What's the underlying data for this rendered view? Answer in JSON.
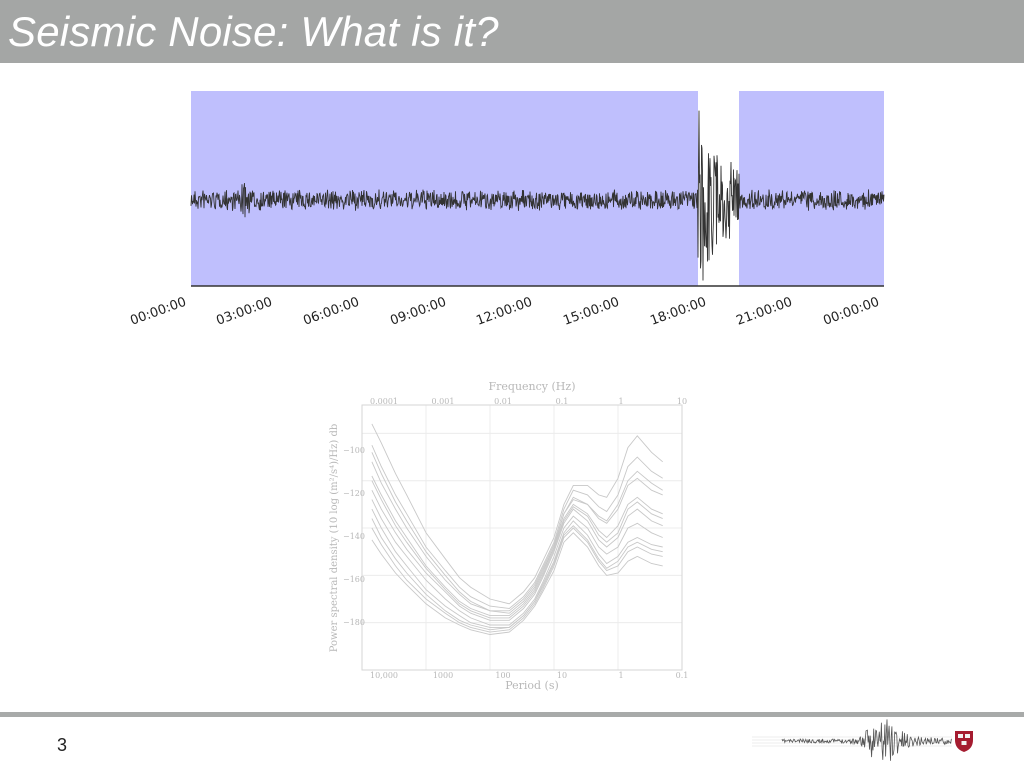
{
  "slide": {
    "title": "Seismic Noise: What is it?",
    "page_number": "3"
  },
  "seismogram": {
    "time_labels": [
      "00:00:00",
      "03:00:00",
      "06:00:00",
      "09:00:00",
      "12:00:00",
      "15:00:00",
      "18:00:00",
      "21:00:00",
      "00:00:00"
    ],
    "shade_color": "#bfbffd",
    "trace_color": "#333333"
  },
  "chart_data": {
    "type": "line",
    "top_axis_label": "Frequency (Hz)",
    "top_ticks": [
      "0.0001",
      "0.001",
      "0.01",
      "0.1",
      "1",
      "10"
    ],
    "xlabel": "Period (s)",
    "x_ticks": [
      "10,000",
      "1000",
      "100",
      "10",
      "1",
      "0.1"
    ],
    "x_scale": "log",
    "xlim": [
      10000,
      0.1
    ],
    "ylabel": "Power spectral density (10 log (m²/s⁴)/Hz) db",
    "y_ticks": [
      "−100",
      "−120",
      "−140",
      "−160",
      "−180"
    ],
    "ylim": [
      -200,
      -88
    ],
    "line_color": "#c8c8c8",
    "series": [
      {
        "x": [
          7000,
          5000,
          3000,
          2000,
          1000,
          500,
          300,
          200,
          100,
          50,
          30,
          20,
          15,
          10,
          7,
          5,
          3,
          2,
          1.5,
          1,
          0.7,
          0.5,
          0.3,
          0.2
        ],
        "values": [
          -128,
          -136,
          -146,
          -152,
          -162,
          -170,
          -175,
          -178,
          -181,
          -181,
          -176,
          -170,
          -163,
          -152,
          -140,
          -135,
          -140,
          -148,
          -151,
          -148,
          -140,
          -138,
          -142,
          -144
        ]
      },
      {
        "x": [
          7000,
          5000,
          3000,
          2000,
          1000,
          500,
          300,
          200,
          100,
          50,
          30,
          20,
          15,
          10,
          7,
          5,
          3,
          2,
          1.5,
          1,
          0.7,
          0.5,
          0.3,
          0.2
        ],
        "values": [
          -118,
          -126,
          -137,
          -144,
          -156,
          -165,
          -171,
          -174,
          -177,
          -177,
          -172,
          -166,
          -159,
          -148,
          -136,
          -130,
          -134,
          -141,
          -144,
          -139,
          -130,
          -127,
          -132,
          -134
        ]
      },
      {
        "x": [
          7000,
          5000,
          3000,
          2000,
          1000,
          500,
          300,
          200,
          100,
          50,
          30,
          20,
          15,
          10,
          7,
          5,
          3,
          2,
          1.5,
          1,
          0.7,
          0.5,
          0.3,
          0.2
        ],
        "values": [
          -140,
          -147,
          -156,
          -162,
          -170,
          -176,
          -180,
          -182,
          -184,
          -183,
          -178,
          -172,
          -166,
          -156,
          -144,
          -140,
          -146,
          -154,
          -158,
          -156,
          -150,
          -148,
          -151,
          -152
        ]
      },
      {
        "x": [
          7000,
          5000,
          3000,
          2000,
          1000,
          500,
          300,
          200,
          100,
          50,
          30,
          20,
          15,
          10,
          7,
          5,
          3,
          2,
          1.5,
          1,
          0.7,
          0.5,
          0.3,
          0.2
        ],
        "values": [
          -105,
          -114,
          -126,
          -134,
          -148,
          -158,
          -165,
          -169,
          -173,
          -174,
          -169,
          -163,
          -156,
          -146,
          -132,
          -124,
          -126,
          -131,
          -133,
          -126,
          -114,
          -110,
          -116,
          -119
        ]
      },
      {
        "x": [
          7000,
          5000,
          3000,
          2000,
          1000,
          500,
          300,
          200,
          100,
          50,
          30,
          20,
          15,
          10,
          7,
          5,
          3,
          2,
          1.5,
          1,
          0.7,
          0.5,
          0.3,
          0.2
        ],
        "values": [
          -132,
          -140,
          -150,
          -156,
          -166,
          -173,
          -177,
          -180,
          -182,
          -182,
          -177,
          -171,
          -164,
          -154,
          -142,
          -137,
          -143,
          -151,
          -155,
          -152,
          -146,
          -144,
          -147,
          -148
        ]
      },
      {
        "x": [
          7000,
          5000,
          3000,
          2000,
          1000,
          500,
          300,
          200,
          100,
          50,
          30,
          20,
          15,
          10,
          7,
          5,
          3,
          2,
          1.5,
          1,
          0.7,
          0.5,
          0.3,
          0.2
        ],
        "values": [
          -112,
          -121,
          -132,
          -140,
          -152,
          -162,
          -168,
          -172,
          -175,
          -175,
          -170,
          -164,
          -157,
          -147,
          -134,
          -127,
          -130,
          -136,
          -138,
          -132,
          -122,
          -119,
          -124,
          -126
        ]
      },
      {
        "x": [
          7000,
          5000,
          3000,
          2000,
          1000,
          500,
          300,
          200,
          100,
          50,
          30,
          20,
          15,
          10,
          7,
          5,
          3,
          2,
          1.5,
          1,
          0.7,
          0.5,
          0.3,
          0.2
        ],
        "values": [
          -124,
          -132,
          -142,
          -149,
          -159,
          -167,
          -173,
          -176,
          -179,
          -179,
          -174,
          -168,
          -161,
          -150,
          -138,
          -132,
          -137,
          -145,
          -148,
          -144,
          -135,
          -132,
          -137,
          -139
        ]
      },
      {
        "x": [
          7000,
          5000,
          3000,
          2000,
          1000,
          500,
          300,
          200,
          100,
          50,
          30,
          20,
          15,
          10,
          7,
          5,
          3,
          2,
          1.5,
          1,
          0.7,
          0.5,
          0.3,
          0.2
        ],
        "values": [
          -96,
          -104,
          -117,
          -126,
          -142,
          -153,
          -161,
          -165,
          -170,
          -172,
          -167,
          -161,
          -154,
          -144,
          -130,
          -122,
          -122,
          -126,
          -127,
          -119,
          -106,
          -101,
          -108,
          -112
        ]
      },
      {
        "x": [
          7000,
          5000,
          3000,
          2000,
          1000,
          500,
          300,
          200,
          100,
          50,
          30,
          20,
          15,
          10,
          7,
          5,
          3,
          2,
          1.5,
          1,
          0.7,
          0.5,
          0.3,
          0.2
        ],
        "values": [
          -145,
          -151,
          -159,
          -164,
          -172,
          -178,
          -181,
          -183,
          -185,
          -184,
          -179,
          -173,
          -167,
          -158,
          -146,
          -142,
          -148,
          -156,
          -160,
          -159,
          -154,
          -152,
          -155,
          -156
        ]
      },
      {
        "x": [
          7000,
          5000,
          3000,
          2000,
          1000,
          500,
          300,
          200,
          100,
          50,
          30,
          20,
          15,
          10,
          7,
          5,
          3,
          2,
          1.5,
          1,
          0.7,
          0.5,
          0.3,
          0.2
        ],
        "values": [
          -120,
          -128,
          -139,
          -146,
          -157,
          -166,
          -172,
          -175,
          -178,
          -178,
          -173,
          -167,
          -160,
          -149,
          -137,
          -131,
          -135,
          -143,
          -146,
          -142,
          -132,
          -129,
          -134,
          -136
        ]
      },
      {
        "x": [
          7000,
          5000,
          3000,
          2000,
          1000,
          500,
          300,
          200,
          100,
          50,
          30,
          20,
          15,
          10,
          7,
          5,
          3,
          2,
          1.5,
          1,
          0.7,
          0.5,
          0.3,
          0.2
        ],
        "values": [
          -108,
          -117,
          -129,
          -137,
          -150,
          -160,
          -167,
          -171,
          -175,
          -176,
          -171,
          -165,
          -158,
          -148,
          -134,
          -128,
          -130,
          -135,
          -137,
          -130,
          -120,
          -116,
          -121,
          -124
        ]
      },
      {
        "x": [
          7000,
          5000,
          3000,
          2000,
          1000,
          500,
          300,
          200,
          100,
          50,
          30,
          20,
          15,
          10,
          7,
          5,
          3,
          2,
          1.5,
          1,
          0.7,
          0.5,
          0.3,
          0.2
        ],
        "values": [
          -136,
          -144,
          -153,
          -159,
          -168,
          -175,
          -179,
          -181,
          -183,
          -182,
          -177,
          -171,
          -165,
          -155,
          -143,
          -139,
          -145,
          -153,
          -157,
          -154,
          -148,
          -146,
          -149,
          -150
        ]
      }
    ]
  }
}
